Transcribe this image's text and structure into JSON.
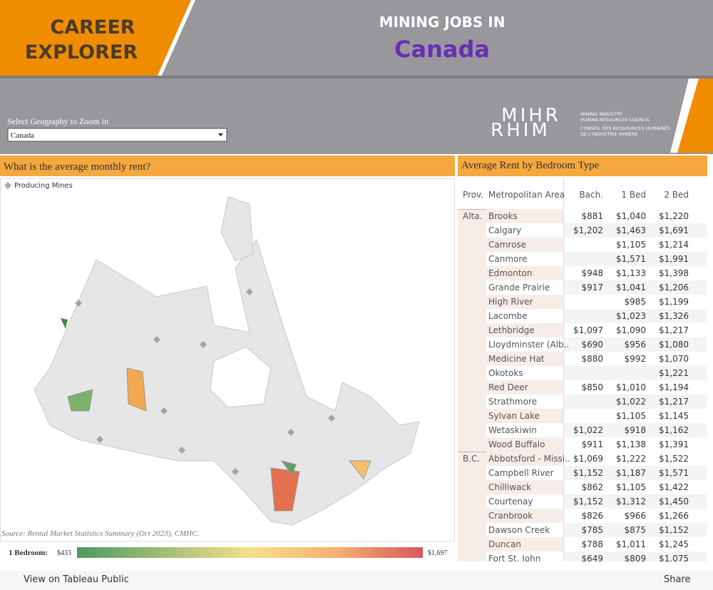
{
  "header": {
    "brand_line1": "CAREER",
    "brand_line2": "EXPLORER",
    "title_line1": "MINING JOBS IN",
    "title_line2": "Canada"
  },
  "filter": {
    "label": "Select Geography to Zoom in",
    "value": "Canada"
  },
  "logo": {
    "top": "MIHR",
    "bottom": "RHIM",
    "en1": "MINING INDUSTRY",
    "en2": "HUMAN RESOURCES COUNCIL",
    "fr1": "CONSEIL DES RESSOURCES HUMAINES",
    "fr2": "DE L'INDUSTRIE MINIÈRE"
  },
  "map_panel": {
    "title": "What is the average monthly rent?",
    "legend_mines": "Producing Mines",
    "source": "Source: Rental Market Statistics Summary (Oct 2023), CMHC.",
    "color_label": "1 Bedroom:",
    "color_min": "$433",
    "color_max": "$1,697"
  },
  "table": {
    "title": "Average Rent by Bedroom Type",
    "columns": [
      "Prov.",
      "Metropolitan Area",
      "Bach.",
      "1 Bed",
      "2 Bed"
    ],
    "groups": [
      {
        "prov": "Alta.",
        "rows": [
          [
            "Brooks",
            "$881",
            "$1,040",
            "$1,220"
          ],
          [
            "Calgary",
            "$1,202",
            "$1,463",
            "$1,691"
          ],
          [
            "Camrose",
            null,
            "$1,105",
            "$1,214"
          ],
          [
            "Canmore",
            null,
            "$1,571",
            "$1,991"
          ],
          [
            "Edmonton",
            "$948",
            "$1,133",
            "$1,398"
          ],
          [
            "Grande Prairie",
            "$917",
            "$1,041",
            "$1,206"
          ],
          [
            "High River",
            null,
            "$985",
            "$1,199"
          ],
          [
            "Lacombe",
            null,
            "$1,023",
            "$1,326"
          ],
          [
            "Lethbridge",
            "$1,097",
            "$1,090",
            "$1,217"
          ],
          [
            "Lloydminster (Alb..",
            "$690",
            "$956",
            "$1,080"
          ],
          [
            "Medicine Hat",
            "$880",
            "$992",
            "$1,070"
          ],
          [
            "Okotoks",
            null,
            null,
            "$1,221"
          ],
          [
            "Red Deer",
            "$850",
            "$1,010",
            "$1,194"
          ],
          [
            "Strathmore",
            null,
            "$1,022",
            "$1,217"
          ],
          [
            "Sylvan Lake",
            null,
            "$1,105",
            "$1,145"
          ],
          [
            "Wetaskiwin",
            "$1,022",
            "$918",
            "$1,162"
          ],
          [
            "Wood Buffalo",
            "$911",
            "$1,138",
            "$1,391"
          ]
        ]
      },
      {
        "prov": "B.C.",
        "rows": [
          [
            "Abbotsford - Missi..",
            "$1,069",
            "$1,222",
            "$1,522"
          ],
          [
            "Campbell River",
            "$1,152",
            "$1,187",
            "$1,571"
          ],
          [
            "Chilliwack",
            "$862",
            "$1,105",
            "$1,422"
          ],
          [
            "Courtenay",
            "$1,152",
            "$1,312",
            "$1,450"
          ],
          [
            "Cranbrook",
            "$826",
            "$966",
            "$1,266"
          ],
          [
            "Dawson Creek",
            "$785",
            "$875",
            "$1,152"
          ],
          [
            "Duncan",
            "$788",
            "$1,011",
            "$1,245"
          ],
          [
            "Fort St. John",
            "$649",
            "$809",
            "$1,075"
          ]
        ]
      }
    ]
  },
  "footer": {
    "view": "View on Tableau Public",
    "share": "Share"
  }
}
